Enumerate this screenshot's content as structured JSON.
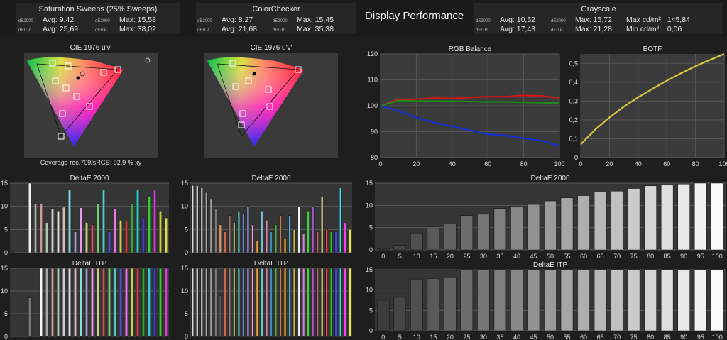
{
  "header": {
    "saturation": {
      "title": "Saturation Sweeps (25% Sweeps)",
      "rows": [
        {
          "tag": "dE2000",
          "avg": "Avg: 9,42",
          "tag2": "dE2000",
          "max": "Max: 15,58"
        },
        {
          "tag": "dEITP",
          "avg": "Avg: 25,69",
          "tag2": "dEITP",
          "max": "Max: 38,02"
        }
      ]
    },
    "colorchecker": {
      "title": "ColorChecker",
      "rows": [
        {
          "tag": "dE2000",
          "avg": "Avg: 8,27",
          "tag2": "dE2000",
          "max": "Max: 15,45"
        },
        {
          "tag": "dEITP",
          "avg": "Avg: 21,68",
          "tag2": "dEITP",
          "max": "Max: 35,38"
        }
      ]
    },
    "display_title": "Display Performance",
    "grayscale": {
      "title": "Grayscale",
      "rows": [
        {
          "tag": "dE2000",
          "avg": "Avg: 10,52",
          "tag2": "dE2000",
          "max": "Max: 15,72",
          "label3": "Max cd/m²:",
          "val3": "145,84"
        },
        {
          "tag": "dEITP",
          "avg": "Avg: 17,43",
          "tag2": "dEITP",
          "max": "Max: 21,28",
          "label3": "Min cd/m²:",
          "val3": "0,06"
        }
      ]
    }
  },
  "cie": {
    "title": "CIE 1976 u'v'",
    "coverage": "Coverage rec.709/sRGB:  92,9 % xy"
  },
  "chart_data": [
    {
      "type": "line",
      "title": "RGB Balance",
      "x": [
        0,
        10,
        20,
        30,
        40,
        50,
        60,
        70,
        80,
        90,
        100
      ],
      "ylim": [
        80,
        120
      ],
      "xlim": [
        0,
        100
      ],
      "yticks": [
        80,
        90,
        100,
        110,
        120
      ],
      "xticks": [
        0,
        20,
        40,
        60,
        80,
        100
      ],
      "series": [
        {
          "color": "#d01818",
          "values": [
            100,
            102.5,
            102.5,
            103,
            102.8,
            103.2,
            103.5,
            103.5,
            104,
            103.8,
            103
          ]
        },
        {
          "color": "#1a8a1a",
          "values": [
            100,
            102,
            101.8,
            101.8,
            101.8,
            101.6,
            101.5,
            101.5,
            101.3,
            101.2,
            101
          ]
        },
        {
          "color": "#1430d0",
          "values": [
            100,
            98,
            95.5,
            93.5,
            92,
            90.5,
            89,
            88.5,
            87.5,
            86.5,
            84.5
          ]
        }
      ]
    },
    {
      "type": "line",
      "title": "EOTF",
      "x": [
        0,
        10,
        20,
        30,
        40,
        50,
        60,
        70,
        80,
        90,
        100
      ],
      "ylim": [
        0,
        0.55
      ],
      "xlim": [
        0,
        100
      ],
      "yticks": [
        "0",
        "0,1",
        "0,2",
        "0,3",
        "0,4",
        "0,5"
      ],
      "ytickvals": [
        0,
        0.1,
        0.2,
        0.3,
        0.4,
        0.5
      ],
      "xticks": [
        0,
        20,
        40,
        60,
        80,
        100
      ],
      "series": [
        {
          "color": "#d8c840",
          "values": [
            0.07,
            0.148,
            0.213,
            0.27,
            0.32,
            0.365,
            0.408,
            0.448,
            0.485,
            0.518,
            0.55
          ]
        }
      ]
    },
    {
      "type": "bar",
      "title": "DeltaE 2000",
      "categories": [
        "0",
        "5",
        "10",
        "15",
        "20",
        "25",
        "30",
        "35",
        "40",
        "45",
        "50",
        "55",
        "60",
        "65",
        "70",
        "75",
        "80",
        "85",
        "90",
        "95",
        "100"
      ],
      "values": [
        0.3,
        1,
        3.8,
        5.2,
        6,
        7.7,
        8,
        9.3,
        9.8,
        10.2,
        11,
        11.7,
        12.2,
        13,
        13.2,
        13.8,
        14.4,
        14.6,
        14.8,
        15.2,
        15.4
      ],
      "ylim": [
        0,
        15
      ],
      "yticks": [
        0,
        5,
        10,
        15
      ]
    },
    {
      "type": "bar",
      "title": "DeltaE ITP",
      "categories": [
        "0",
        "5",
        "10",
        "15",
        "20",
        "25",
        "30",
        "35",
        "40",
        "45",
        "50",
        "55",
        "60",
        "65",
        "70",
        "75",
        "80",
        "85",
        "90",
        "95",
        "100"
      ],
      "values": [
        7.5,
        8.2,
        12.7,
        12.8,
        13,
        15,
        15,
        15,
        15,
        15,
        15,
        15,
        15,
        15,
        15,
        15,
        15,
        15,
        15,
        15,
        15
      ],
      "ylim": [
        0,
        15
      ],
      "yticks": [
        0,
        5,
        10,
        15
      ]
    },
    {
      "type": "bar",
      "title": "DeltaE 2000",
      "ylim": [
        0,
        15
      ],
      "yticks": [
        0,
        5,
        10,
        15
      ],
      "values": [
        0.3,
        0,
        0,
        15,
        10.5,
        10.5,
        6.5,
        9.5,
        9,
        9.8,
        13.5,
        4.5,
        9.7,
        6.5,
        6,
        10.5,
        13.5,
        4.5,
        9.5,
        7,
        6.8,
        10.5,
        13.5,
        7.5,
        12,
        13.5,
        9,
        7.5
      ],
      "colors": [
        "#444",
        "#444",
        "#444",
        "#f4f4f4",
        "#aaa",
        "#c99",
        "#aca",
        "#ccd",
        "#ddd",
        "#dbb",
        "#8dd",
        "#99c",
        "#e9e",
        "#cc8",
        "#c55",
        "#7c7",
        "#5cc",
        "#55c",
        "#e7e",
        "#cc5",
        "#c44",
        "#3a3",
        "#3cc",
        "#44c",
        "#3c3",
        "#c4c",
        "#cc4",
        "#dd5"
      ]
    },
    {
      "type": "bar",
      "title": "DeltaE 2000",
      "ylim": [
        0,
        15
      ],
      "yticks": [
        0,
        5,
        10,
        15
      ],
      "values": [
        14.5,
        14.5,
        14,
        13,
        11.5,
        9.5,
        6,
        4.5,
        8,
        6.5,
        9,
        8.5,
        10,
        6,
        2.5,
        9,
        7,
        4.5,
        6,
        8,
        3,
        8,
        5,
        10,
        4,
        9,
        10,
        4.5,
        12,
        5,
        4.5,
        4.5,
        14,
        6.5,
        5
      ],
      "colors": [
        "#ddd",
        "#ccc",
        "#bbb",
        "#aaa",
        "#999",
        "#777",
        "#d96",
        "#c64",
        "#a77",
        "#9a7",
        "#6ba",
        "#68c",
        "#99d",
        "#e9c",
        "#ea4",
        "#7bc",
        "#d8a",
        "#48b",
        "#5a4",
        "#c75",
        "#ea3",
        "#6ad",
        "#cb4",
        "#eee",
        "#c8c",
        "#4c4",
        "#a5c",
        "#c66",
        "#dc8",
        "#e44",
        "#3c3",
        "#44e",
        "#4de",
        "#e4e",
        "#ee4"
      ]
    },
    {
      "type": "bar",
      "title": "DeltaE ITP",
      "ylim": [
        0,
        15
      ],
      "yticks": [
        0,
        5,
        10,
        15
      ],
      "values": [
        0,
        0,
        0,
        8.5,
        0,
        15,
        15,
        15,
        15,
        15,
        15,
        15,
        15,
        15,
        15,
        15,
        15,
        15,
        15,
        15,
        15,
        15,
        15,
        15,
        15,
        15,
        15,
        15
      ],
      "colors": [
        "#444",
        "#444",
        "#444",
        "#777",
        "#444",
        "#f4f4f4",
        "#aaa",
        "#c99",
        "#aca",
        "#ccd",
        "#ddd",
        "#dbb",
        "#8dd",
        "#99c",
        "#e9e",
        "#cc8",
        "#c55",
        "#7c7",
        "#5cc",
        "#55c",
        "#e7e",
        "#cc5",
        "#c44",
        "#3a3",
        "#3cc",
        "#44c",
        "#3c3",
        "#c4c"
      ]
    },
    {
      "type": "bar",
      "title": "DeltaE ITP",
      "ylim": [
        0,
        15
      ],
      "yticks": [
        0,
        5,
        10,
        15
      ],
      "values": [
        15,
        15,
        15,
        15,
        15,
        15,
        9,
        15,
        15,
        15,
        15,
        15,
        15,
        15,
        15,
        15,
        15,
        15,
        15,
        15,
        15,
        15,
        15,
        15,
        15,
        15,
        15,
        15,
        15,
        15,
        15,
        15,
        15,
        15,
        15
      ],
      "colors": [
        "#ddd",
        "#ccc",
        "#bbb",
        "#aaa",
        "#999",
        "#777",
        "#555",
        "#c64",
        "#a77",
        "#9a7",
        "#6ba",
        "#68c",
        "#99d",
        "#e9c",
        "#ea4",
        "#7bc",
        "#d8a",
        "#48b",
        "#5a4",
        "#c75",
        "#ea3",
        "#6ad",
        "#cb4",
        "#eee",
        "#c8c",
        "#4c4",
        "#a5c",
        "#c66",
        "#dc8",
        "#e44",
        "#3c3",
        "#44e",
        "#4de",
        "#e4e",
        "#ee4"
      ]
    }
  ]
}
